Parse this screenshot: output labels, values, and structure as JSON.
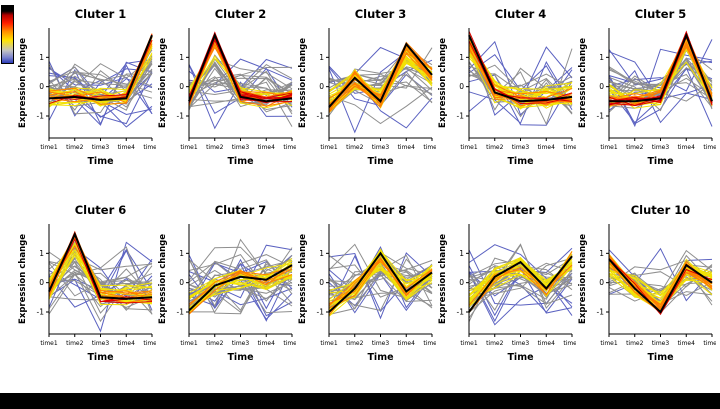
{
  "figure": {
    "background": "#ffffff",
    "bottom_bar_color": "#000000"
  },
  "colorbar": {
    "description": "membership color scale, high (red) at top to low (blue) at bottom",
    "stops": [
      "#000000 0%",
      "#000000 9%",
      "#b40000 16%",
      "#ff1e00 30%",
      "#ff9000 45%",
      "#ffe300 60%",
      "#c3c3c3 78%",
      "#7d85cf 90%",
      "#2d3db8 100%"
    ]
  },
  "style": {
    "member_count": 52,
    "palette": {
      "high": "#dc0000",
      "mid_high": "#ff7f00",
      "mid": "#f2e205",
      "low": "#8f8f8f",
      "outlier": "#5b62c1",
      "center": "#000000"
    }
  },
  "chart_data": {
    "type": "line",
    "layout": "small-multiples 2x5, fuzzy clustering expression profiles with black cluster-center line and member lines colored by membership",
    "x": [
      "time1",
      "time2",
      "time3",
      "time4",
      "time5"
    ],
    "xlabel": "Time",
    "ylabel": "Expression change",
    "ylim": [
      -1.75,
      2.0
    ],
    "y_ticks": [
      -1,
      0,
      1
    ],
    "legend": "vertical membership colorbar at top-left (red = high membership, orange/yellow = medium, gray/blue = low)",
    "panels": [
      {
        "title": "Cluter 1",
        "center": [
          -0.4,
          -0.35,
          -0.45,
          -0.4,
          1.75
        ],
        "membership_max": 1.0
      },
      {
        "title": "Cluter 2",
        "center": [
          -0.5,
          1.75,
          -0.35,
          -0.5,
          -0.4
        ],
        "membership_max": 1.0
      },
      {
        "title": "Cluter 3",
        "center": [
          -0.7,
          0.3,
          -0.5,
          1.45,
          0.4
        ],
        "membership_max": 0.8
      },
      {
        "title": "Cluter 4",
        "center": [
          1.75,
          -0.2,
          -0.5,
          -0.45,
          -0.35
        ],
        "membership_max": 1.0
      },
      {
        "title": "Cluter 5",
        "center": [
          -0.5,
          -0.5,
          -0.4,
          1.75,
          -0.5
        ],
        "membership_max": 1.0
      },
      {
        "title": "Cluter 6",
        "center": [
          -0.3,
          1.65,
          -0.5,
          -0.55,
          -0.5
        ],
        "membership_max": 1.0
      },
      {
        "title": "Cluter 7",
        "center": [
          -0.95,
          -0.1,
          0.2,
          0.1,
          0.6
        ],
        "membership_max": 0.8
      },
      {
        "title": "Cluter 8",
        "center": [
          -1.0,
          -0.2,
          1.0,
          -0.3,
          0.35
        ],
        "membership_max": 0.85
      },
      {
        "title": "Cluter 9",
        "center": [
          -1.0,
          0.2,
          0.7,
          -0.2,
          0.9
        ],
        "membership_max": 0.8
      },
      {
        "title": "Cluter 10",
        "center": [
          0.8,
          -0.2,
          -1.0,
          0.6,
          0.0
        ],
        "membership_max": 0.9
      }
    ]
  }
}
